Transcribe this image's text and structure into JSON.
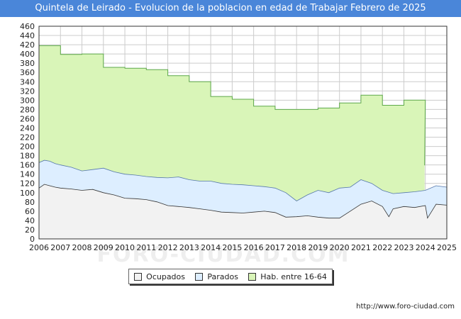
{
  "title": "Quintela de Leirado - Evolucion de la poblacion en edad de Trabajar Febrero de 2025",
  "source": "http://www.foro-ciudad.com",
  "watermark": "FORO-CIUDAD.COM",
  "colors": {
    "title_bg": "#4a86d9",
    "hab_fill": "#d9f5b8",
    "hab_line": "#5da84a",
    "parados_fill": "#ddeeff",
    "parados_line": "#5577aa",
    "ocupados_fill": "#f2f2f2",
    "ocupados_line": "#333333",
    "grid": "#cccccc"
  },
  "legend": [
    {
      "label": "Ocupados",
      "color": "#f2f2f2"
    },
    {
      "label": "Parados",
      "color": "#ddeeff"
    },
    {
      "label": "Hab. entre 16-64",
      "color": "#d9f5b8"
    }
  ],
  "chart_data": {
    "type": "area",
    "title": "Quintela de Leirado - Evolucion de la poblacion en edad de Trabajar Febrero de 2025",
    "xlabel": "",
    "ylabel": "",
    "xlim": [
      2006,
      2025
    ],
    "ylim": [
      0,
      460
    ],
    "yticks": [
      0,
      20,
      40,
      60,
      80,
      100,
      120,
      140,
      160,
      180,
      200,
      220,
      240,
      260,
      280,
      300,
      320,
      340,
      360,
      380,
      400,
      420,
      440,
      460
    ],
    "xticks": [
      2006,
      2007,
      2008,
      2009,
      2010,
      2011,
      2012,
      2013,
      2014,
      2015,
      2016,
      2017,
      2018,
      2019,
      2020,
      2021,
      2022,
      2023,
      2024,
      2025
    ],
    "grid": true,
    "legend_position": "bottom-center",
    "series": [
      {
        "name": "Hab. entre 16-64",
        "step": true,
        "x": [
          2006,
          2007,
          2008,
          2009,
          2010,
          2011,
          2012,
          2013,
          2014,
          2015,
          2016,
          2017,
          2018,
          2019,
          2020,
          2021,
          2022,
          2023,
          2024
        ],
        "values": [
          418,
          399,
          400,
          371,
          369,
          366,
          353,
          340,
          308,
          302,
          287,
          280,
          280,
          283,
          294,
          311,
          289,
          300,
          159
        ],
        "end_x": 2024.0
      },
      {
        "name": "Parados",
        "x": [
          2006.0,
          2006.25,
          2006.5,
          2006.75,
          2007.0,
          2007.5,
          2008.0,
          2008.5,
          2009.0,
          2009.5,
          2010.0,
          2010.5,
          2011.0,
          2011.5,
          2012.0,
          2012.5,
          2013.0,
          2013.5,
          2014.0,
          2014.5,
          2015.0,
          2015.5,
          2016.0,
          2016.5,
          2017.0,
          2017.5,
          2018.0,
          2018.5,
          2019.0,
          2019.5,
          2020.0,
          2020.5,
          2021.0,
          2021.5,
          2022.0,
          2022.5,
          2023.0,
          2023.5,
          2024.0,
          2024.5,
          2025.0
        ],
        "values": [
          165,
          170,
          168,
          163,
          160,
          155,
          147,
          150,
          153,
          145,
          140,
          138,
          135,
          133,
          132,
          134,
          128,
          125,
          125,
          120,
          118,
          117,
          115,
          113,
          110,
          100,
          82,
          95,
          105,
          100,
          110,
          112,
          128,
          120,
          105,
          98,
          100,
          102,
          105,
          115,
          112
        ]
      },
      {
        "name": "Ocupados",
        "x": [
          2006.0,
          2006.25,
          2006.5,
          2006.75,
          2007.0,
          2007.5,
          2008.0,
          2008.5,
          2009.0,
          2009.5,
          2010.0,
          2010.5,
          2011.0,
          2011.5,
          2012.0,
          2012.5,
          2013.0,
          2013.5,
          2014.0,
          2014.5,
          2015.0,
          2015.5,
          2016.0,
          2016.5,
          2017.0,
          2017.5,
          2018.0,
          2018.5,
          2019.0,
          2019.5,
          2020.0,
          2020.5,
          2021.0,
          2021.5,
          2022.0,
          2022.3,
          2022.5,
          2023.0,
          2023.5,
          2024.0,
          2024.1,
          2024.5,
          2025.0
        ],
        "values": [
          110,
          118,
          115,
          112,
          110,
          108,
          105,
          107,
          100,
          95,
          88,
          87,
          85,
          80,
          72,
          70,
          68,
          65,
          62,
          58,
          57,
          56,
          58,
          60,
          57,
          47,
          48,
          50,
          47,
          45,
          45,
          60,
          75,
          82,
          70,
          48,
          65,
          70,
          68,
          72,
          45,
          75,
          73
        ]
      }
    ]
  }
}
